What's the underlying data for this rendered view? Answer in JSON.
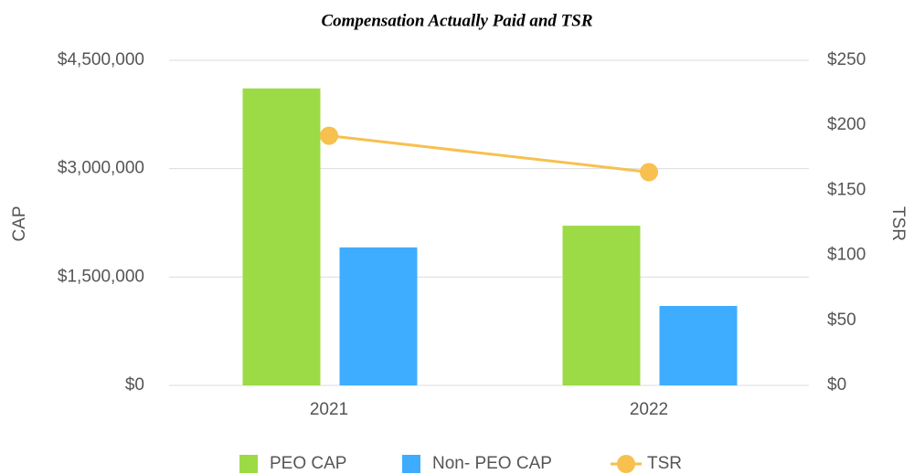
{
  "chart_data": {
    "type": "bar",
    "title": "Compensation Actually Paid and TSR",
    "categories": [
      "2021",
      "2022"
    ],
    "series": [
      {
        "name": "PEO CAP",
        "color": "#9cdb45",
        "values": [
          4110000,
          2210000
        ]
      },
      {
        "name": "Non- PEO CAP",
        "color": "#3fadff",
        "values": [
          1910000,
          1100000
        ]
      },
      {
        "name": "TSR",
        "color": "#f7c04f",
        "type": "line",
        "axis": "y2",
        "values": [
          192,
          164
        ]
      }
    ],
    "y_label": "CAP",
    "y2_label": "TSR",
    "ylim": [
      0,
      4500000
    ],
    "yticks": [
      {
        "value": 0,
        "label": "$0"
      },
      {
        "value": 1500000,
        "label": "$1,500,000"
      },
      {
        "value": 3000000,
        "label": "$3,000,000"
      },
      {
        "value": 4500000,
        "label": "$4,500,000"
      }
    ],
    "y2lim": [
      0,
      250
    ],
    "y2ticks": [
      {
        "value": 0,
        "label": "$0"
      },
      {
        "value": 50,
        "label": "$50"
      },
      {
        "value": 100,
        "label": "$100"
      },
      {
        "value": 150,
        "label": "$150"
      },
      {
        "value": 200,
        "label": "$200"
      },
      {
        "value": 250,
        "label": "$250"
      }
    ],
    "grid": true,
    "legend": "bottom"
  }
}
